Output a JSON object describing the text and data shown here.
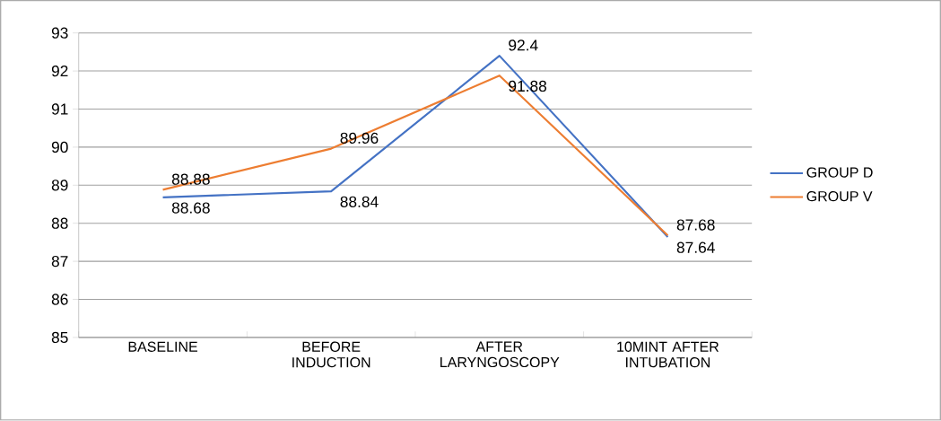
{
  "chart_data": {
    "type": "line",
    "categories": [
      "BASELINE",
      "BEFORE INDUCTION",
      "AFTER LARYNGOSCOPY",
      "10MINT AFTER INTUBATION"
    ],
    "series": [
      {
        "name": "GROUP D",
        "color": "#4472c4",
        "values": [
          88.68,
          88.84,
          92.4,
          87.64
        ]
      },
      {
        "name": "GROUP V",
        "color": "#ed7d31",
        "values": [
          88.88,
          89.96,
          91.88,
          87.68
        ]
      }
    ],
    "ylim": [
      85,
      93
    ],
    "yticks": [
      85,
      86,
      87,
      88,
      89,
      90,
      91,
      92,
      93
    ],
    "grid": "y",
    "legend": "right",
    "data_labels": true,
    "marker": "none",
    "line_style": "solid"
  }
}
